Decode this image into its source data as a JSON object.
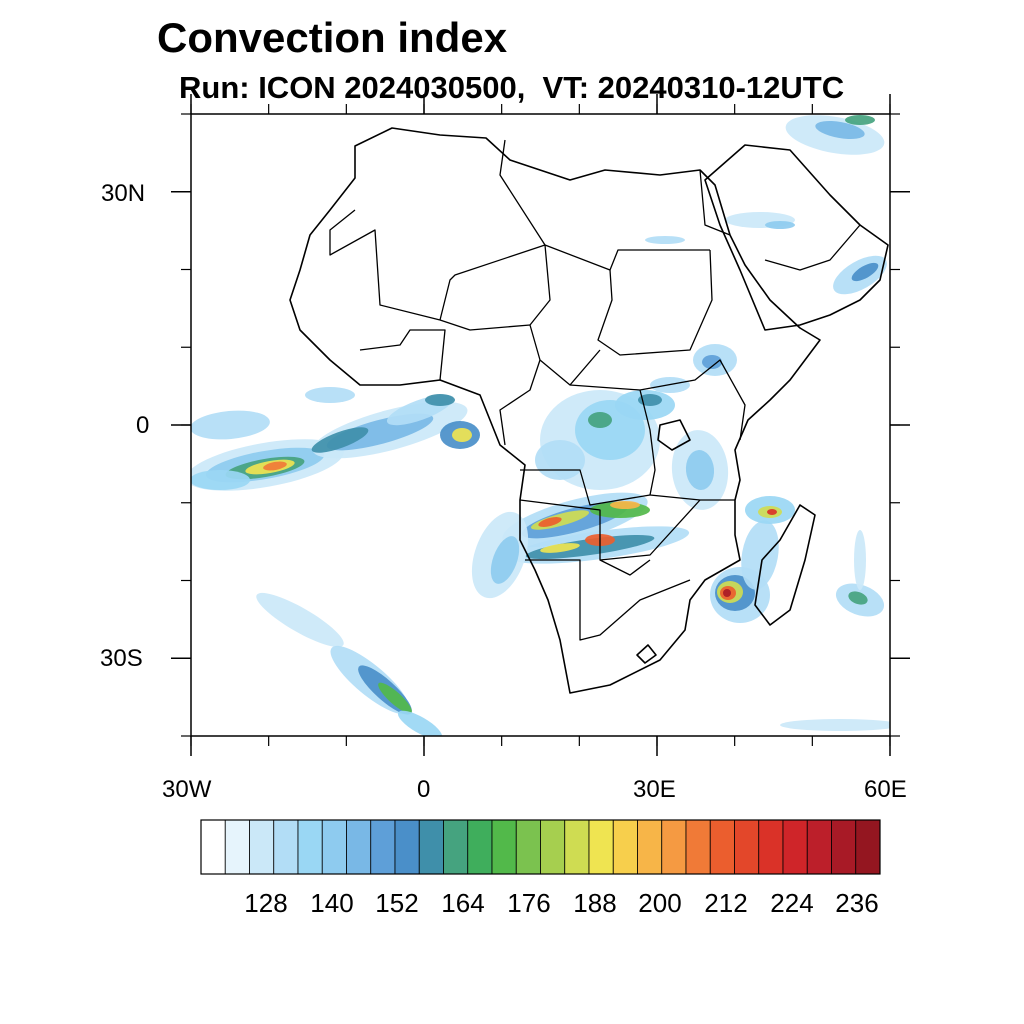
{
  "title": "Convection index",
  "subtitle": "Run: ICON 2024030500,  VT: 20240310-12UTC",
  "map": {
    "lon_range": [
      -30,
      60
    ],
    "lat_range": [
      -40,
      40
    ],
    "x_ticks": [
      {
        "lon": -30,
        "label": "30W"
      },
      {
        "lon": 0,
        "label": "0"
      },
      {
        "lon": 30,
        "label": "30E"
      },
      {
        "lon": 60,
        "label": "60E"
      }
    ],
    "y_ticks": [
      {
        "lat": 30,
        "label": "30N"
      },
      {
        "lat": 0,
        "label": "0"
      },
      {
        "lat": -30,
        "label": "30S"
      }
    ]
  },
  "colorbar": {
    "colors": [
      "#ffffff",
      "#e6f4fc",
      "#cbe8f8",
      "#b2ddf6",
      "#9ad7f4",
      "#8ecbef",
      "#79b8e6",
      "#5e9fd8",
      "#4a8fc9",
      "#3f8faa",
      "#45a37f",
      "#3fae5c",
      "#52b94a",
      "#7bc24f",
      "#a6cf4f",
      "#cfdc52",
      "#efe451",
      "#f7cf4c",
      "#f7b548",
      "#f59a42",
      "#f07a37",
      "#eb5e2e",
      "#e3472a",
      "#da3228",
      "#cf2529",
      "#bc1f2a",
      "#a81a26",
      "#941620"
    ],
    "labels": [
      "128",
      "140",
      "152",
      "164",
      "176",
      "188",
      "200",
      "212",
      "224",
      "236"
    ]
  },
  "legend_colors": {
    "border": "#000000",
    "coast": "#000000"
  }
}
